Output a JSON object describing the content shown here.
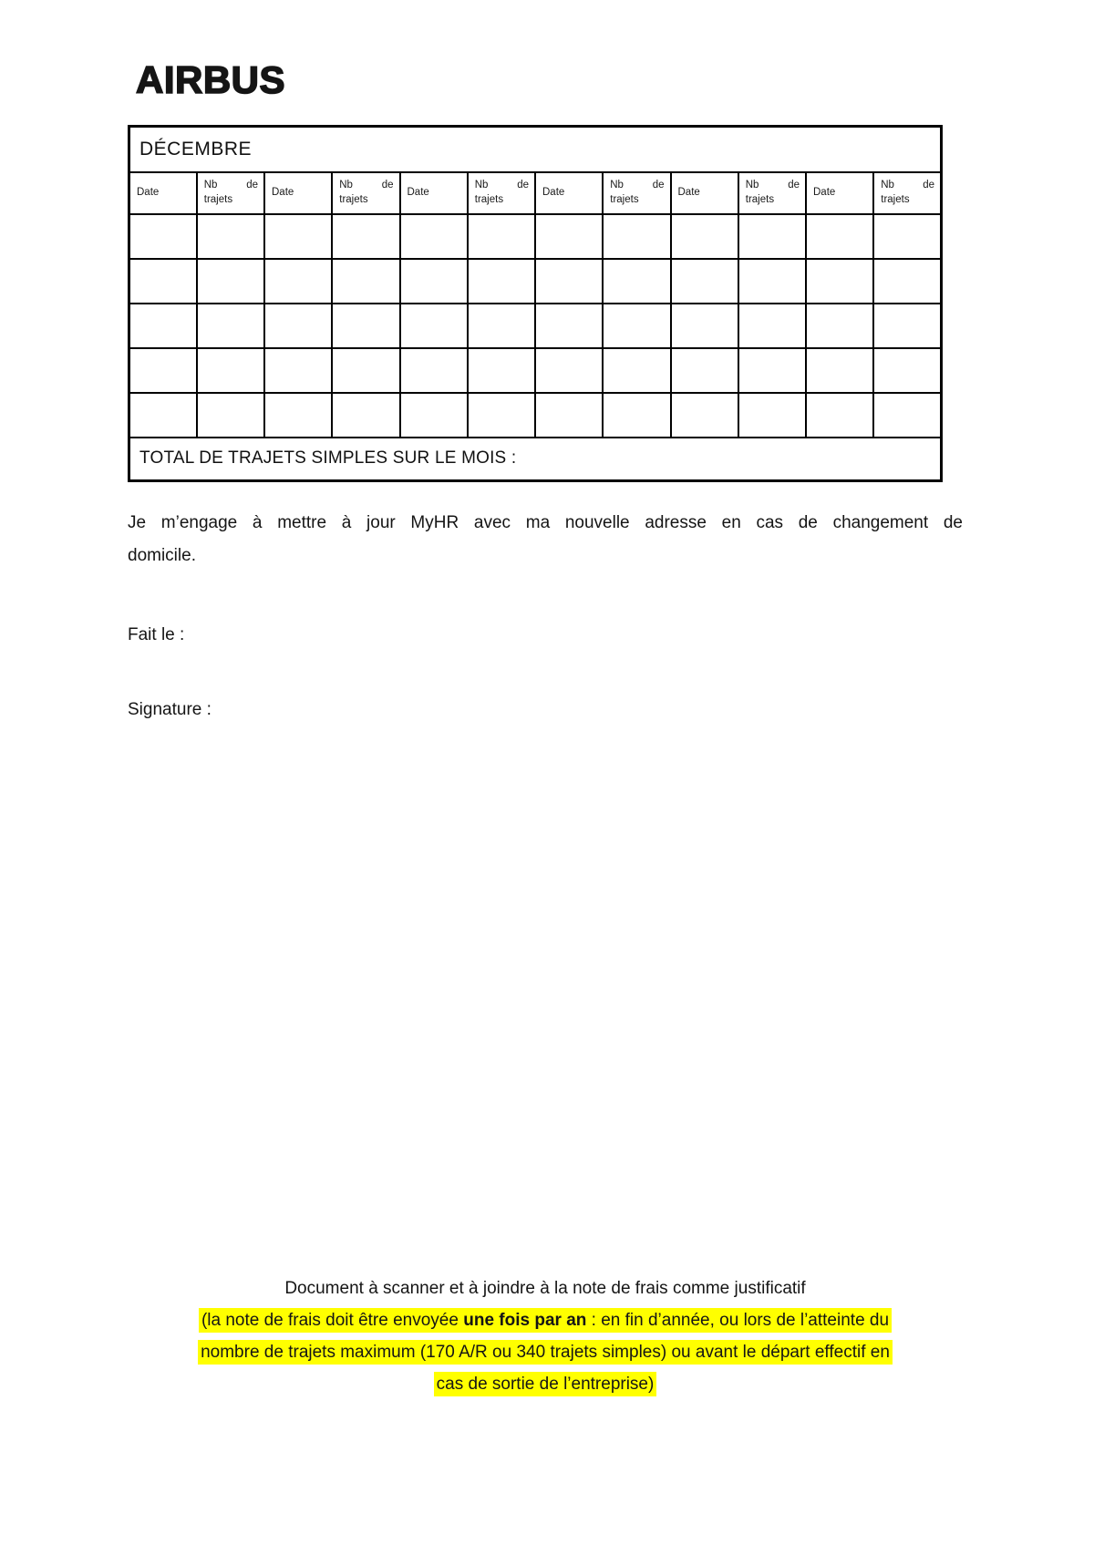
{
  "logo": {
    "text": "AIRBUS"
  },
  "table": {
    "title": "DÉCEMBRE",
    "columns": {
      "date": "Date",
      "nb": "Nb de trajets"
    },
    "column_pairs": 6,
    "empty_rows": 5,
    "total_label": "TOTAL DE TRAJETS SIMPLES SUR LE MOIS :"
  },
  "body": {
    "engagement_line1": "Je m’engage à mettre à jour MyHR avec ma nouvelle adresse en cas de changement de",
    "engagement_line2": "domicile.",
    "fait_le": "Fait le :",
    "signature": "Signature :"
  },
  "footer": {
    "scan_note": "Document à scanner et à joindre à la note de frais comme justificatif",
    "highlight_color": "#ffff00",
    "line1_prefix": "(la note de frais doit être envoyée ",
    "line1_bold": "une fois par an",
    "line1_suffix": " : en fin d’année, ou lors de l’atteinte du",
    "line2": "nombre de trajets maximum (170 A/R ou 340 trajets simples) ou avant le départ effectif en",
    "line3": "cas de sortie de l’entreprise)"
  }
}
